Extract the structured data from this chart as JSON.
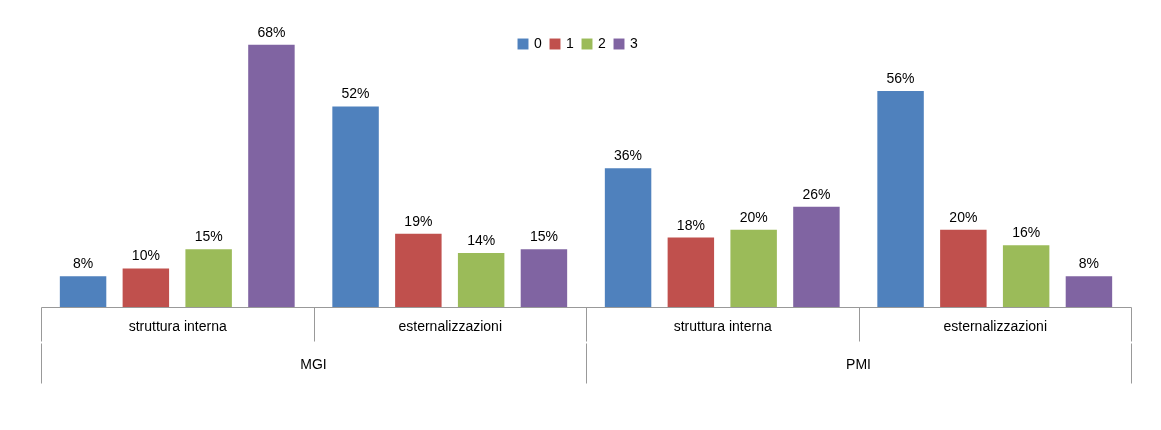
{
  "chart_data": {
    "type": "bar",
    "categories": [
      "struttura interna",
      "esternalizzazioni",
      "struttura interna",
      "esternalizzazioni"
    ],
    "series": [
      {
        "name": "0",
        "color": "#4f81bd",
        "values": [
          8,
          52,
          36,
          56
        ],
        "value_labels": [
          "8%",
          "52%",
          "36%",
          "56%"
        ]
      },
      {
        "name": "1",
        "color": "#c0504d",
        "values": [
          10,
          19,
          18,
          20
        ],
        "value_labels": [
          "10%",
          "19%",
          "18%",
          "20%"
        ]
      },
      {
        "name": "2",
        "color": "#9bbb59",
        "values": [
          15,
          14,
          20,
          16
        ],
        "value_labels": [
          "15%",
          "14%",
          "20%",
          "16%"
        ]
      },
      {
        "name": "3",
        "color": "#8064a2",
        "values": [
          68,
          15,
          26,
          8
        ],
        "value_labels": [
          "68%",
          "15%",
          "26%",
          "8%"
        ]
      }
    ],
    "annotations": [
      "MGI",
      "PMI"
    ],
    "legend": "top"
  }
}
